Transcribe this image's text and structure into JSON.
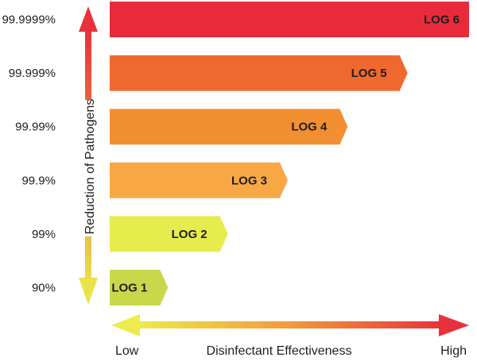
{
  "chart_data": {
    "type": "bar",
    "orientation": "horizontal",
    "categories": [
      "90%",
      "99%",
      "99.9%",
      "99.99%",
      "99.999%",
      "99.9999%"
    ],
    "bar_labels": [
      "LOG 1",
      "LOG 2",
      "LOG 3",
      "LOG 4",
      "LOG 5",
      "LOG 6"
    ],
    "values": [
      1,
      2,
      3,
      4,
      5,
      6
    ],
    "colors": [
      "#c8d84a",
      "#e7ec4e",
      "#f7a845",
      "#f28f30",
      "#ef6830",
      "#e82a3b"
    ],
    "title": "",
    "ylabel": "Reduction of Pathogens",
    "xlabel": "Disinfectant Effectiveness",
    "x_low_label": "Low",
    "x_high_label": "High",
    "xlim": [
      0,
      6
    ]
  }
}
